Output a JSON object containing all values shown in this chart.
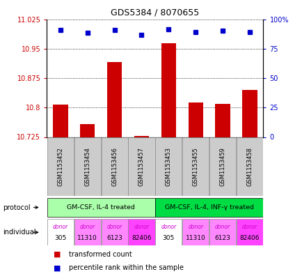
{
  "title": "GDS5384 / 8070655",
  "samples": [
    "GSM1153452",
    "GSM1153454",
    "GSM1153456",
    "GSM1153457",
    "GSM1153453",
    "GSM1153455",
    "GSM1153459",
    "GSM1153458"
  ],
  "bar_values": [
    10.808,
    10.758,
    10.915,
    10.727,
    10.963,
    10.812,
    10.81,
    10.845
  ],
  "percentile_values": [
    10.998,
    10.99,
    10.998,
    10.985,
    11.0,
    10.993,
    10.995,
    10.993
  ],
  "ylim_left": [
    10.725,
    11.025
  ],
  "ylim_right": [
    0,
    100
  ],
  "yticks_left": [
    10.725,
    10.8,
    10.875,
    10.95,
    11.025
  ],
  "yticks_right": [
    0,
    25,
    50,
    75,
    100
  ],
  "ytick_labels_left": [
    "10.725",
    "10.8",
    "10.875",
    "10.95",
    "11.025"
  ],
  "ytick_labels_right": [
    "0",
    "25",
    "50",
    "75",
    "100%"
  ],
  "bar_color": "#cc0000",
  "percentile_color": "#0000cc",
  "bar_baseline": 10.725,
  "protocol_groups": [
    {
      "label": "GM-CSF, IL-4 treated",
      "start": 0,
      "end": 3,
      "color": "#aaffaa"
    },
    {
      "label": "GM-CSF, IL-4, INF-γ treated",
      "start": 4,
      "end": 7,
      "color": "#00dd44"
    }
  ],
  "individuals": [
    {
      "label": "donor\n305",
      "col": 0,
      "color": "#ffffff"
    },
    {
      "label": "donor\n11310",
      "col": 1,
      "color": "#ff88ff"
    },
    {
      "label": "donor\n6123",
      "col": 2,
      "color": "#ff88ff"
    },
    {
      "label": "donor\n82406",
      "col": 3,
      "color": "#ff44ff"
    },
    {
      "label": "donor\n305",
      "col": 4,
      "color": "#ffffff"
    },
    {
      "label": "donor\n11310",
      "col": 5,
      "color": "#ff88ff"
    },
    {
      "label": "donor\n6123",
      "col": 6,
      "color": "#ff88ff"
    },
    {
      "label": "donor\n82406",
      "col": 7,
      "color": "#ff44ff"
    }
  ],
  "legend_bar_label": "transformed count",
  "legend_percentile_label": "percentile rank within the sample",
  "protocol_label": "protocol",
  "individual_label": "individual",
  "tick_color_left": "#cc0000",
  "tick_color_right": "#0000cc",
  "sample_box_color": "#cccccc",
  "sample_box_edge": "#888888"
}
